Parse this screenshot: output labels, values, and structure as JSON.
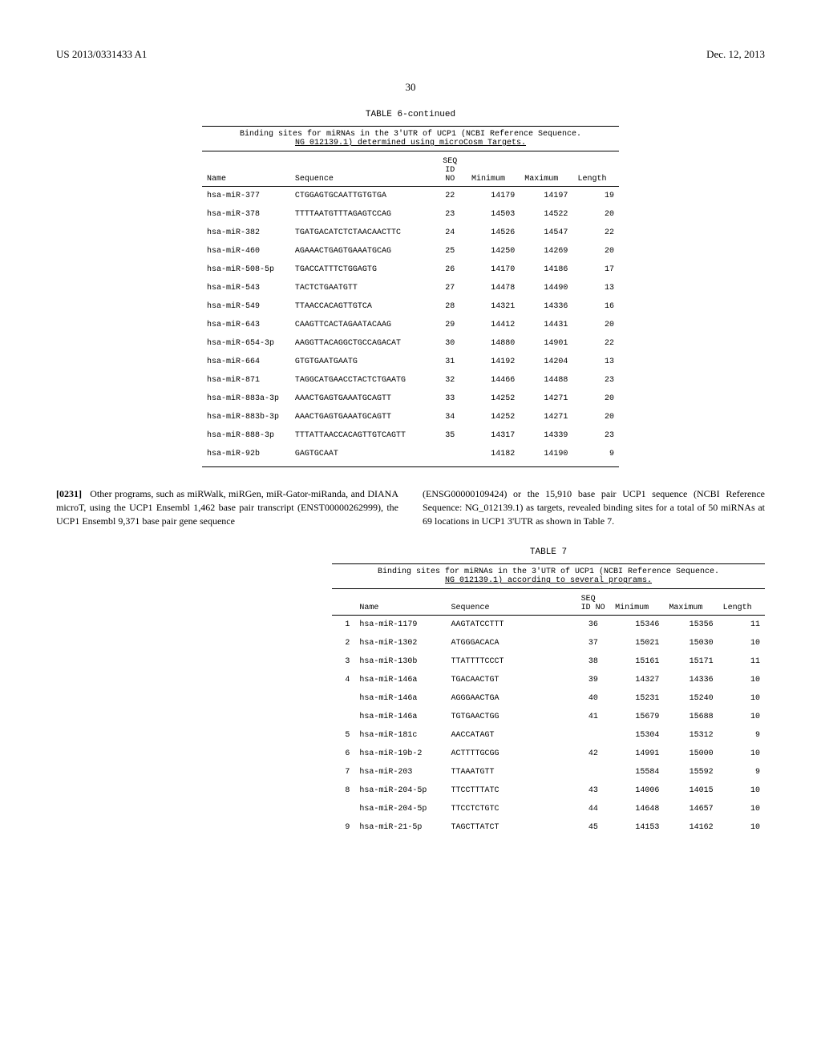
{
  "header": {
    "doc_number": "US 2013/0331433 A1",
    "date": "Dec. 12, 2013",
    "page": "30"
  },
  "table6": {
    "title": "TABLE 6-continued",
    "caption_line1": "Binding sites for miRNAs in the 3'UTR of UCP1 (NCBI Reference Sequence.",
    "caption_line2": "NG 012139.1) determined using microCosm Targets.",
    "headers": {
      "name": "Name",
      "seq": "Sequence",
      "seqid": "SEQ\nID\nNO",
      "min": "Minimum",
      "max": "Maximum",
      "len": "Length"
    },
    "rows": [
      {
        "name": "hsa-miR-377",
        "seq": "CTGGAGTGCAATTGTGTGA",
        "id": "22",
        "min": "14179",
        "max": "14197",
        "len": "19"
      },
      {
        "name": "hsa-miR-378",
        "seq": "TTTTAATGTTTAGAGTCCAG",
        "id": "23",
        "min": "14503",
        "max": "14522",
        "len": "20"
      },
      {
        "name": "hsa-miR-382",
        "seq": "TGATGACATCTCTAACAACTTC",
        "id": "24",
        "min": "14526",
        "max": "14547",
        "len": "22"
      },
      {
        "name": "hsa-miR-460",
        "seq": "AGAAACTGAGTGAAATGCAG",
        "id": "25",
        "min": "14250",
        "max": "14269",
        "len": "20"
      },
      {
        "name": "hsa-miR-508-5p",
        "seq": "TGACCATTTCTGGAGTG",
        "id": "26",
        "min": "14170",
        "max": "14186",
        "len": "17"
      },
      {
        "name": "hsa-miR-543",
        "seq": "TACTCTGAATGTT",
        "id": "27",
        "min": "14478",
        "max": "14490",
        "len": "13"
      },
      {
        "name": "hsa-miR-549",
        "seq": "TTAACCACAGTTGTCA",
        "id": "28",
        "min": "14321",
        "max": "14336",
        "len": "16"
      },
      {
        "name": "hsa-miR-643",
        "seq": "CAAGTTCACTAGAATACAAG",
        "id": "29",
        "min": "14412",
        "max": "14431",
        "len": "20"
      },
      {
        "name": "hsa-miR-654-3p",
        "seq": "AAGGTTACAGGCTGCCAGACAT",
        "id": "30",
        "min": "14880",
        "max": "14901",
        "len": "22"
      },
      {
        "name": "hsa-miR-664",
        "seq": "GTGTGAATGAATG",
        "id": "31",
        "min": "14192",
        "max": "14204",
        "len": "13"
      },
      {
        "name": "hsa-miR-871",
        "seq": "TAGGCATGAACCTACTCTGAATG",
        "id": "32",
        "min": "14466",
        "max": "14488",
        "len": "23"
      },
      {
        "name": "hsa-miR-883a-3p",
        "seq": "AAACTGAGTGAAATGCAGTT",
        "id": "33",
        "min": "14252",
        "max": "14271",
        "len": "20"
      },
      {
        "name": "hsa-miR-883b-3p",
        "seq": "AAACTGAGTGAAATGCAGTT",
        "id": "34",
        "min": "14252",
        "max": "14271",
        "len": "20"
      },
      {
        "name": "hsa-miR-888-3p",
        "seq": "TTTATTAACCACAGTTGTCAGTT",
        "id": "35",
        "min": "14317",
        "max": "14339",
        "len": "23"
      },
      {
        "name": "hsa-miR-92b",
        "seq": "GAGTGCAAT",
        "id": "",
        "min": "14182",
        "max": "14190",
        "len": "9"
      }
    ]
  },
  "para": {
    "num": "[0231]",
    "col1": "Other programs, such as miRWalk, miRGen, miR-Gator-miRanda, and DIANA microT, using the UCP1 Ensembl 1,462 base pair transcript (ENST00000262999), the UCP1 Ensembl 9,371 base pair gene sequence",
    "col2": "(ENSG00000109424) or the 15,910 base pair UCP1 sequence (NCBI Reference Sequence: NG_012139.1) as targets, revealed binding sites for a total of 50 miRNAs at 69 locations in UCP1 3'UTR as shown in Table 7."
  },
  "table7": {
    "title": "TABLE 7",
    "caption_line1": "Binding sites for miRNAs in the 3'UTR of UCP1 (NCBI Reference Sequence.",
    "caption_line2": "NG 012139.1) according to several programs.",
    "headers": {
      "name": "Name",
      "seq": "Sequence",
      "seqid": "SEQ ID NO",
      "min": "Minimum",
      "max": "Maximum",
      "len": "Length"
    },
    "rows": [
      {
        "num": "1",
        "name": "hsa-miR-1179",
        "seq": "AAGTATCCTTT",
        "id": "36",
        "min": "15346",
        "max": "15356",
        "len": "11"
      },
      {
        "num": "2",
        "name": "hsa-miR-1302",
        "seq": "ATGGGACACA",
        "id": "37",
        "min": "15021",
        "max": "15030",
        "len": "10"
      },
      {
        "num": "3",
        "name": "hsa-miR-130b",
        "seq": "TTATTTTCCCT",
        "id": "38",
        "min": "15161",
        "max": "15171",
        "len": "11"
      },
      {
        "num": "4",
        "name": "hsa-miR-146a",
        "seq": "TGACAACTGT",
        "id": "39",
        "min": "14327",
        "max": "14336",
        "len": "10"
      },
      {
        "num": "",
        "name": "hsa-miR-146a",
        "seq": "AGGGAACTGA",
        "id": "40",
        "min": "15231",
        "max": "15240",
        "len": "10"
      },
      {
        "num": "",
        "name": "hsa-miR-146a",
        "seq": "TGTGAACTGG",
        "id": "41",
        "min": "15679",
        "max": "15688",
        "len": "10"
      },
      {
        "num": "5",
        "name": "hsa-miR-181c",
        "seq": "AACCATAGT",
        "id": "",
        "min": "15304",
        "max": "15312",
        "len": "9"
      },
      {
        "num": "6",
        "name": "hsa-miR-19b-2",
        "seq": "ACTTTTGCGG",
        "id": "42",
        "min": "14991",
        "max": "15000",
        "len": "10"
      },
      {
        "num": "7",
        "name": "hsa-miR-203",
        "seq": "TTAAATGTT",
        "id": "",
        "min": "15584",
        "max": "15592",
        "len": "9"
      },
      {
        "num": "8",
        "name": "hsa-miR-204-5p",
        "seq": "TTCCTTTATC",
        "id": "43",
        "min": "14006",
        "max": "14015",
        "len": "10"
      },
      {
        "num": "",
        "name": "hsa-miR-204-5p",
        "seq": "TTCCTCTGTC",
        "id": "44",
        "min": "14648",
        "max": "14657",
        "len": "10"
      },
      {
        "num": "9",
        "name": "hsa-miR-21-5p",
        "seq": "TAGCTTATCT",
        "id": "45",
        "min": "14153",
        "max": "14162",
        "len": "10"
      }
    ]
  }
}
